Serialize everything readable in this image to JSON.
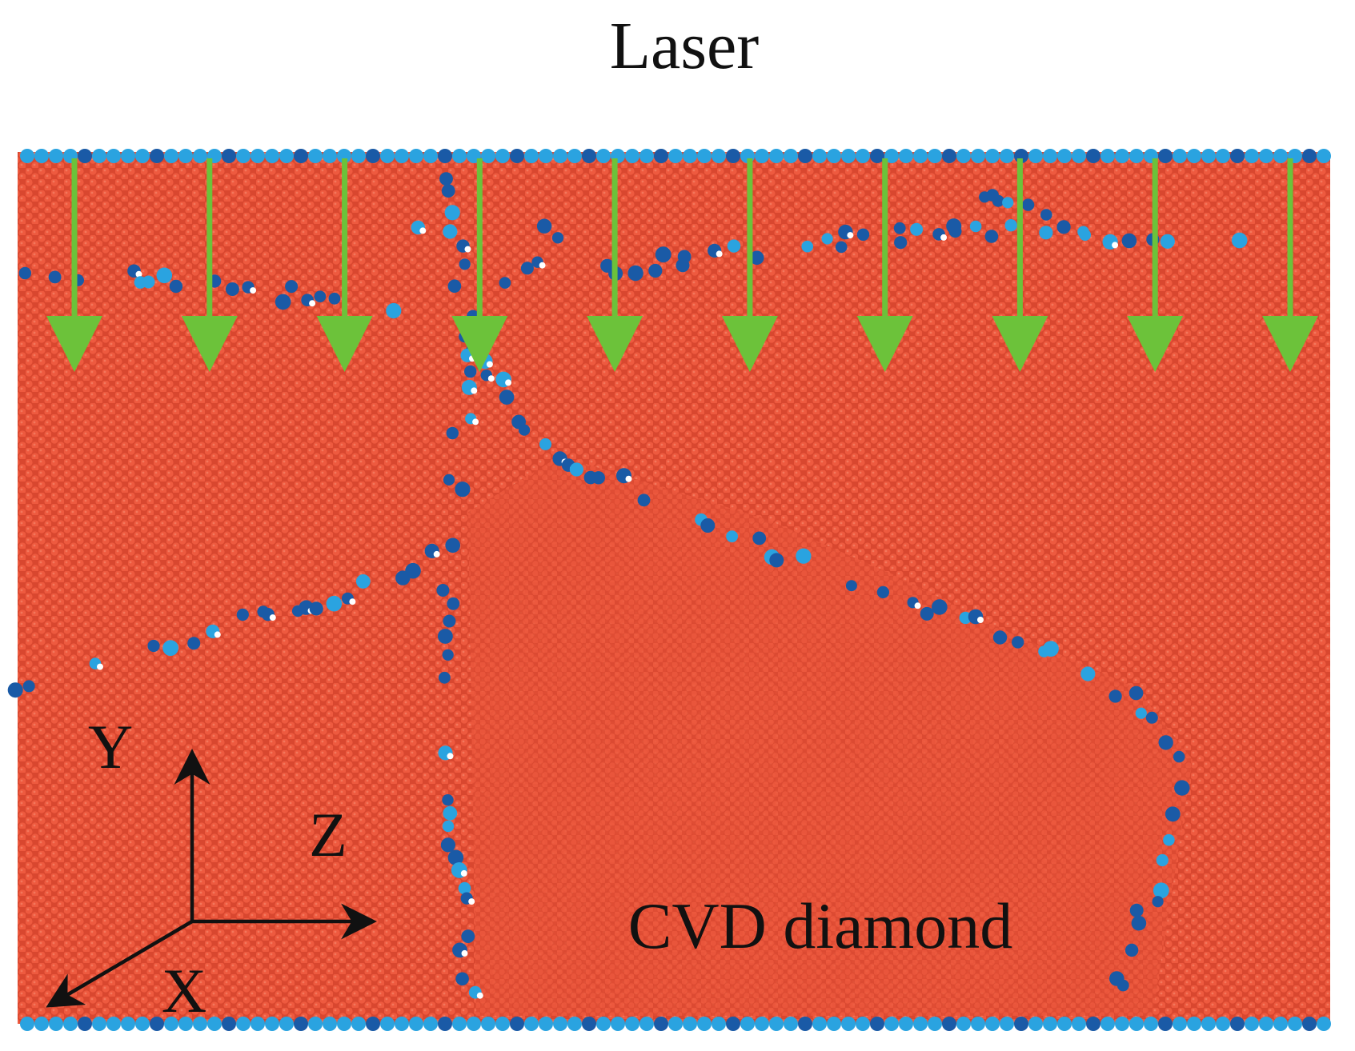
{
  "title": "Laser",
  "material_label": "CVD diamond",
  "axes": {
    "y": "Y",
    "z": "Z",
    "x": "X"
  },
  "laser_arrow_count": 10,
  "colors": {
    "diamond_atoms": "#e8533a",
    "diamond_atoms_dark": "#c63a24",
    "defect_atoms": "#1a5aa6",
    "surface_atoms": "#2aa3e0",
    "laser_arrows": "#6cc23a",
    "axis_arrows": "#111111"
  }
}
